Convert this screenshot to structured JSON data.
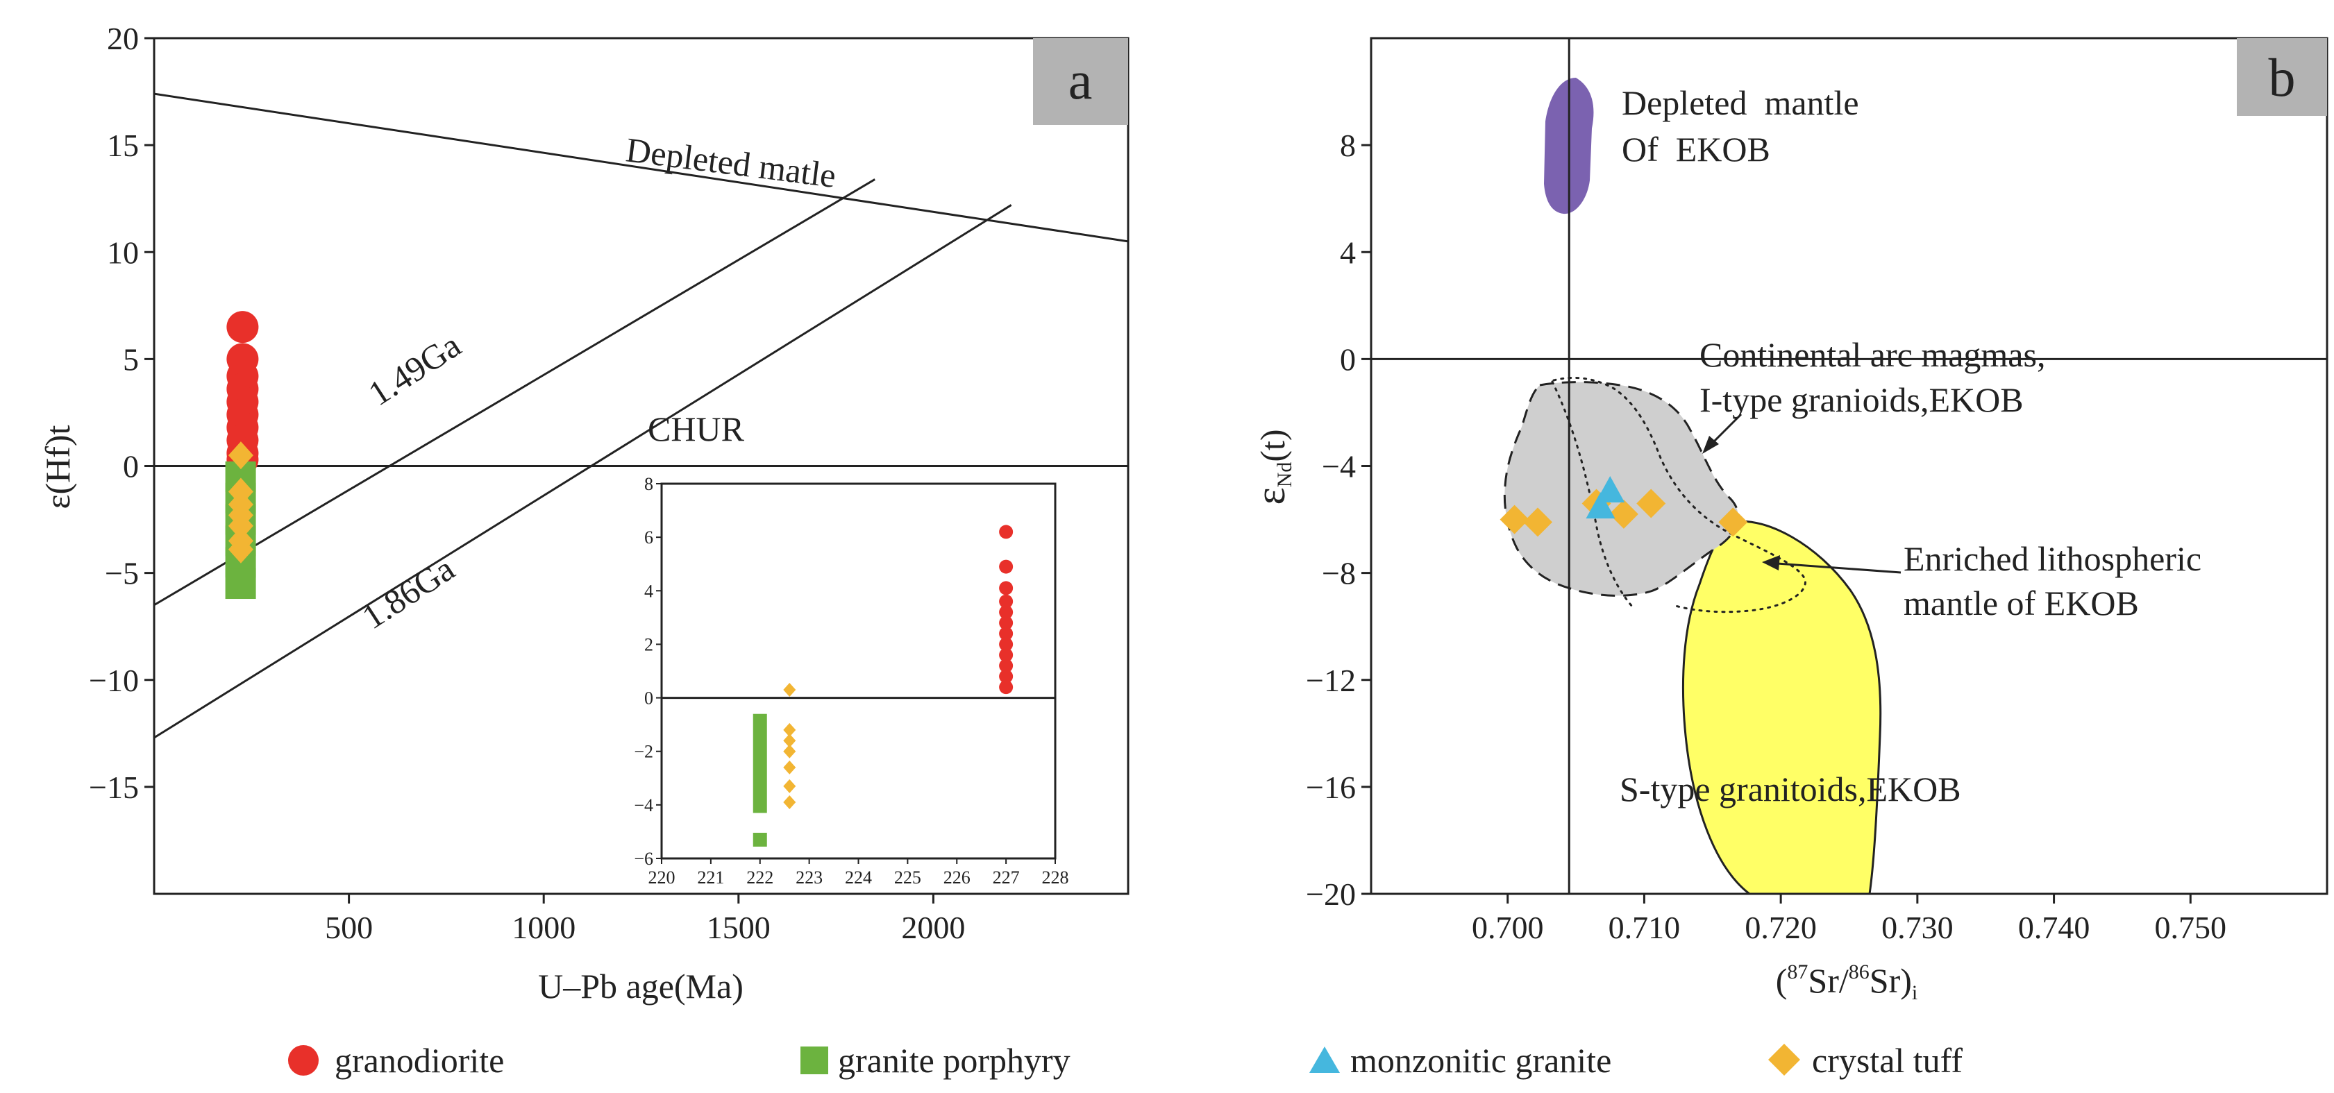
{
  "colors": {
    "granodiorite": "#e8302a",
    "granite_porphyry": "#6cb33f",
    "monzonitic_granite": "#45b7de",
    "crystal_tuff": "#f2b533",
    "depleted_field": "#7b62b0",
    "enriched_field": "#ffff66",
    "arc_field": "#cfcfcf",
    "panel_label_bg": "#b3b3b3"
  },
  "legend": {
    "granodiorite": "granodiorite",
    "granite_porphyry": "granite porphyry",
    "monzonitic_granite": "monzonitic granite",
    "crystal_tuff": "crystal tuff"
  },
  "chart_data": [
    {
      "type": "scatter",
      "panel": "a",
      "xlabel": "U–Pb age(Ma)",
      "ylabel": "ε(Hf)t",
      "xlim": [
        0,
        2500
      ],
      "ylim": [
        -20,
        20
      ],
      "xticks": [
        500,
        1000,
        1500,
        2000
      ],
      "yticks": [
        20,
        15,
        10,
        5,
        0,
        -5,
        -10,
        -15
      ],
      "ytick_labels": [
        "20",
        "15",
        "10",
        "5",
        "0",
        "−5",
        "−10",
        "−15"
      ],
      "lines": {
        "depleted": {
          "label": "Depleted matle",
          "points": [
            [
              0,
              17.4
            ],
            [
              2500,
              10.5
            ]
          ]
        },
        "chur": {
          "label": "CHUR",
          "value": 0
        },
        "ga149": {
          "label": "1.49Ga",
          "points": [
            [
              0,
              -6.5
            ],
            [
              1850,
              13.4
            ]
          ]
        },
        "ga186": {
          "label": "1.86Ga",
          "points": [
            [
              0,
              -12.7
            ],
            [
              2200,
              12.2
            ]
          ]
        }
      },
      "series": [
        {
          "name": "granodiorite",
          "x": 227,
          "y": [
            6.5,
            5.0,
            4.2,
            3.6,
            3.0,
            2.4,
            1.8,
            1.2,
            0.6,
            0.3
          ]
        },
        {
          "name": "granite porphyry",
          "x": 222,
          "y": [
            -0.5,
            -1.5,
            -2.5,
            -3.5,
            -4.5,
            -5.5
          ]
        },
        {
          "name": "crystal tuff",
          "x": 222.6,
          "y": [
            0.5,
            -1.2,
            -1.8,
            -2.3,
            -2.8,
            -3.5,
            -3.9
          ]
        }
      ],
      "inset": {
        "xlim": [
          220,
          228
        ],
        "ylim": [
          -6,
          8
        ],
        "xticks": [
          220,
          221,
          222,
          223,
          224,
          225,
          226,
          227,
          228
        ],
        "yticks": [
          8,
          6,
          4,
          2,
          0,
          -2,
          -4,
          -6
        ],
        "ytick_labels": [
          "8",
          "6",
          "4",
          "2",
          "0",
          "−2",
          "−4",
          "−6"
        ],
        "series": [
          {
            "name": "granodiorite",
            "x": 227,
            "y": [
              6.2,
              4.9,
              4.1,
              3.6,
              3.2,
              2.8,
              2.4,
              2.0,
              1.6,
              1.2,
              0.8,
              0.4
            ]
          },
          {
            "name": "granite porphyry",
            "x": 222,
            "y_range": [
              -4.3,
              -0.6
            ],
            "y_extra": -5.3
          },
          {
            "name": "crystal tuff",
            "x": 222.6,
            "y": [
              0.3,
              -1.2,
              -1.6,
              -2.0,
              -2.6,
              -3.3,
              -3.9
            ]
          }
        ]
      }
    },
    {
      "type": "scatter",
      "panel": "b",
      "xlabel_main": "Sr/",
      "xlabel_sup1": "87",
      "xlabel_sup2": "86",
      "xlabel_tail": "Sr)",
      "xlabel_open": "(",
      "xlabel_sub": "i",
      "ylabel_main": "ε",
      "ylabel_sub": "Nd",
      "ylabel_tail": "(t)",
      "xlim": [
        0.69,
        0.76
      ],
      "ylim": [
        -20,
        12
      ],
      "xticks": [
        0.7,
        0.71,
        0.72,
        0.73,
        0.74,
        0.75
      ],
      "xtick_labels": [
        "0.700",
        "0.710",
        "0.720",
        "0.730",
        "0.740",
        "0.750"
      ],
      "yticks": [
        8,
        4,
        0,
        -4,
        -8,
        -12,
        -16,
        -20
      ],
      "ytick_labels": [
        "8",
        "4",
        "0",
        "−4",
        "−8",
        "−12",
        "−16",
        "−20"
      ],
      "reference": {
        "x": 0.7045,
        "y": 0
      },
      "fields": {
        "depleted": "Depleted  mantle",
        "depleted2": "Of  EKOB",
        "arc": "Continental arc magmas,",
        "arc2": "I-type granioids,EKOB",
        "enriched": "Enriched lithospheric",
        "enriched2": "mantle of EKOB",
        "stype": "S-type granitoids,EKOB"
      },
      "series": [
        {
          "name": "crystal tuff",
          "points": [
            [
              0.7005,
              -6.0
            ],
            [
              0.7022,
              -6.1
            ],
            [
              0.7065,
              -5.4
            ],
            [
              0.7085,
              -5.8
            ],
            [
              0.7105,
              -5.4
            ],
            [
              0.7165,
              -6.1
            ]
          ]
        },
        {
          "name": "monzonitic granite",
          "points": [
            [
              0.7075,
              -5.0
            ],
            [
              0.7068,
              -5.6
            ]
          ]
        }
      ]
    }
  ]
}
